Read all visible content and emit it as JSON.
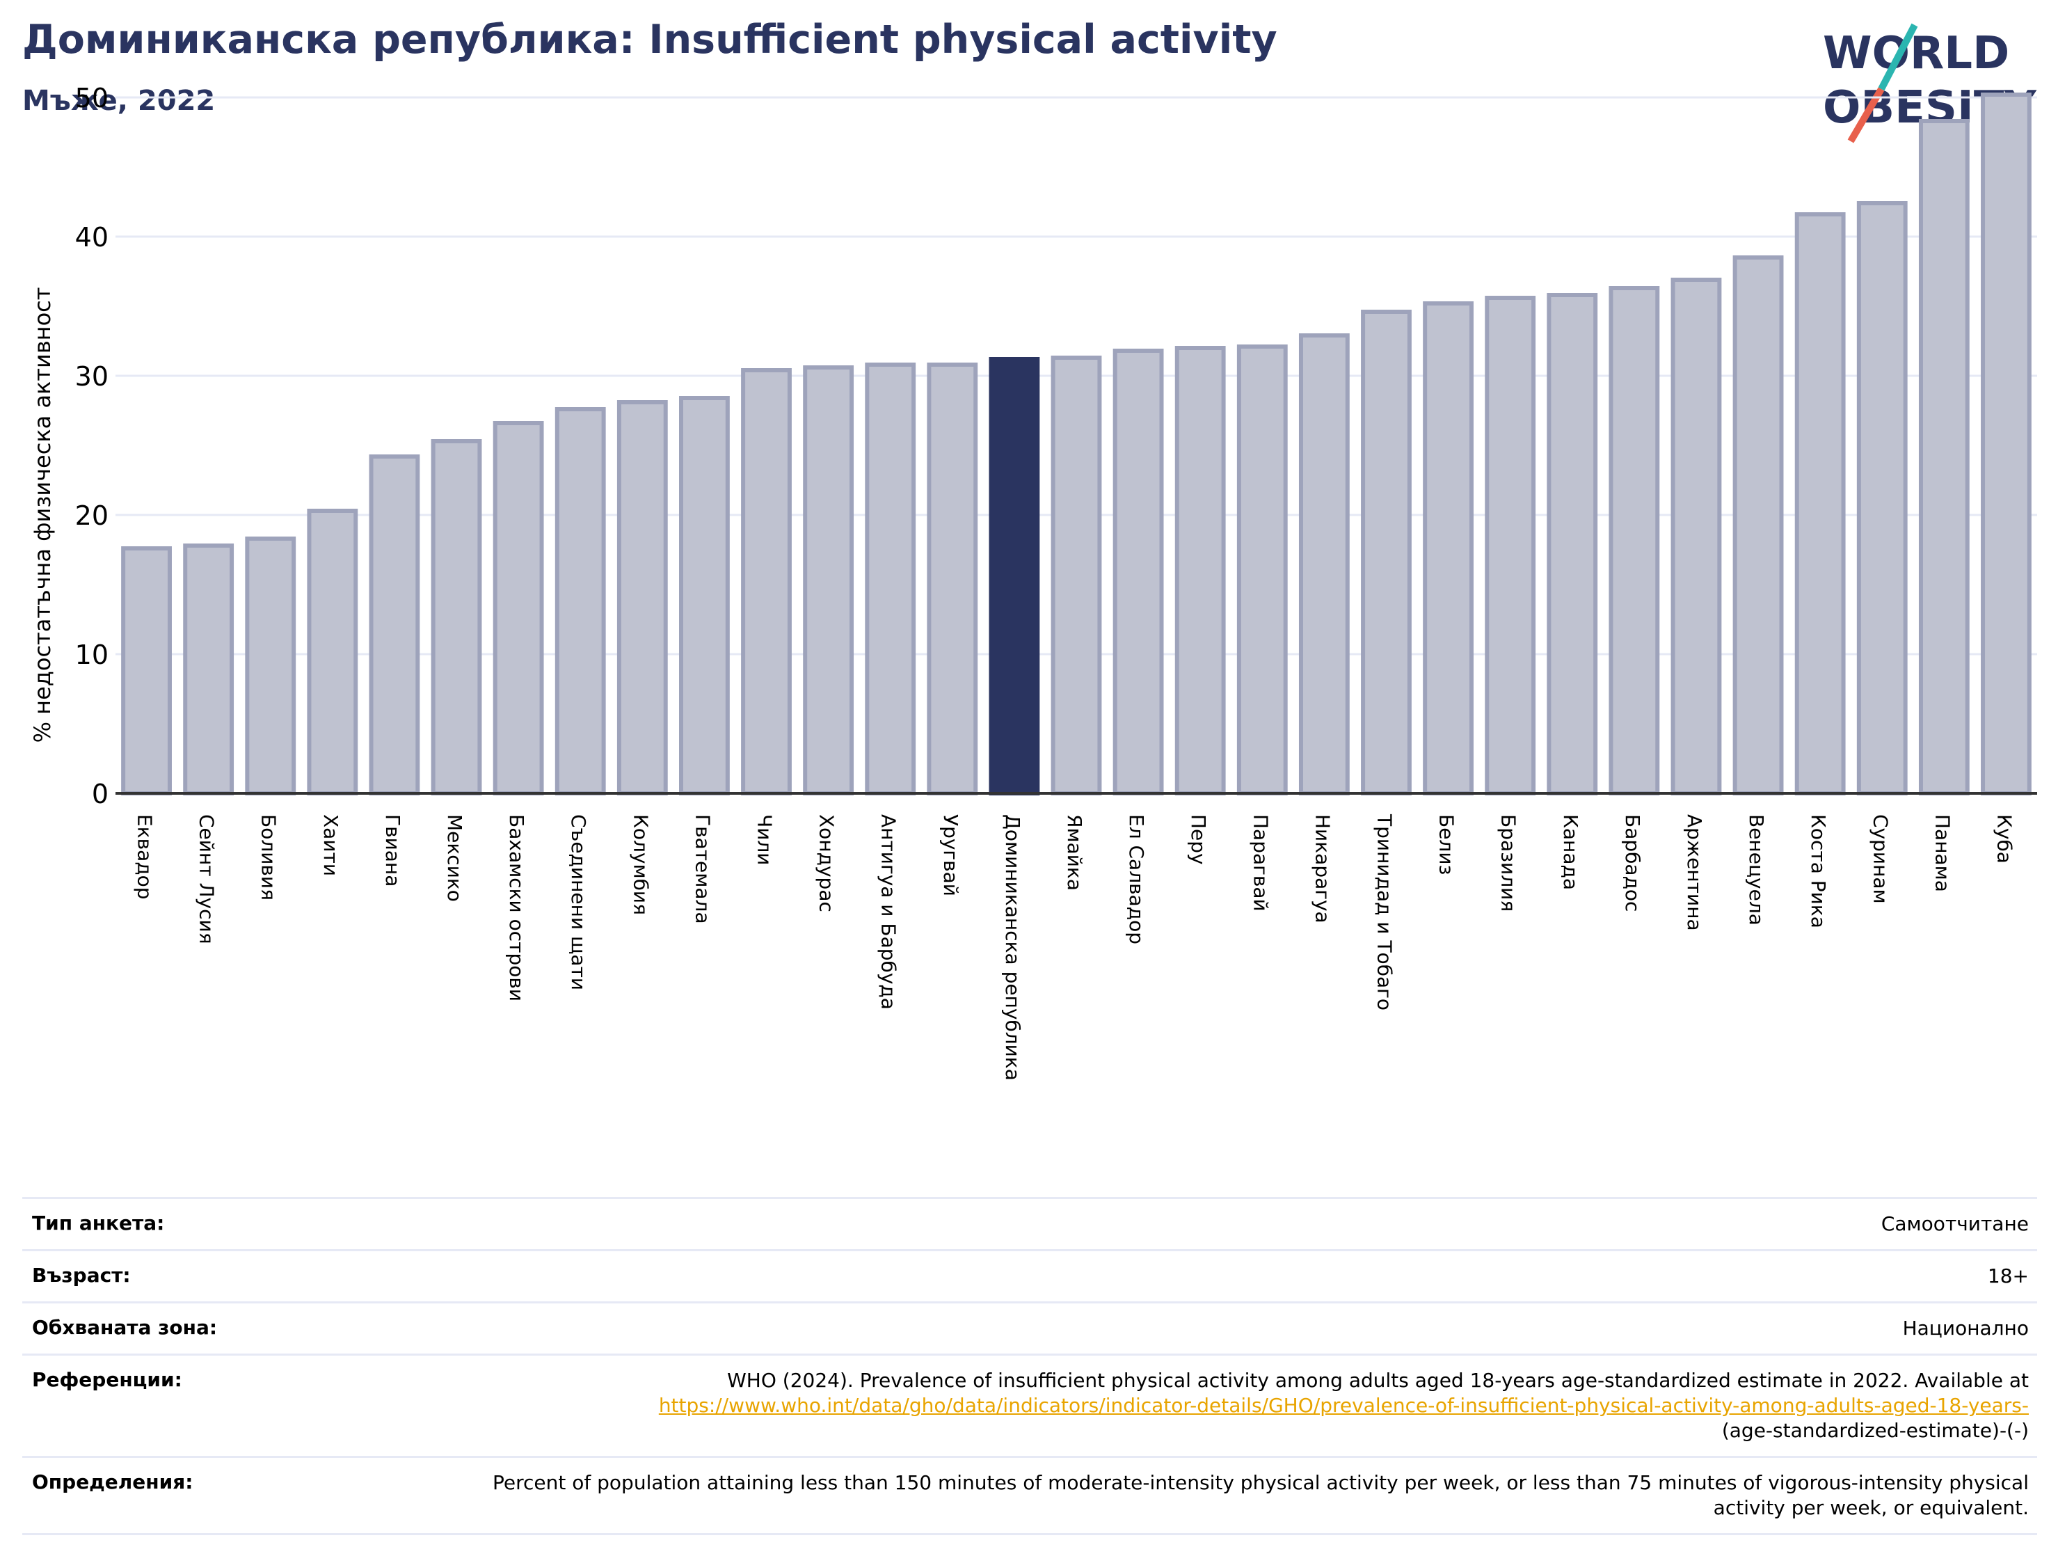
{
  "header": {
    "title": "Доминиканска република: Insufficient physical activity",
    "subtitle": "Мъже, 2022"
  },
  "logo": {
    "line1": "WORLD",
    "line2": "OBESITY",
    "text_color": "#2a3460",
    "slash_top": "#2bb5b0",
    "slash_bottom": "#e8604c"
  },
  "colors": {
    "bar_fill": "#bfc2d0",
    "bar_stroke": "#9ea3bb",
    "highlight": "#2a3460",
    "grid": "#e6e9f5",
    "axis": "#333333"
  },
  "chart_data": {
    "type": "bar",
    "title": "Доминиканска република: Insufficient physical activity",
    "subtitle": "Мъже, 2022",
    "xlabel": "",
    "ylabel": "% недостатъчна физическа активност",
    "ylim": [
      0,
      52
    ],
    "yticks": [
      0,
      10,
      20,
      30,
      40,
      50
    ],
    "grid": true,
    "highlight": "Доминиканска република",
    "categories": [
      "Еквадор",
      "Сейнт Лусия",
      "Боливия",
      "Хаити",
      "Гвиана",
      "Мексико",
      "Бахамски острови",
      "Съединени щати",
      "Колумбия",
      "Гватемала",
      "Чили",
      "Хондурас",
      "Антигуа и Барбуда",
      "Уругвай",
      "Доминиканска република",
      "Ямайка",
      "Ел Салвадор",
      "Перу",
      "Парагвай",
      "Никарагуа",
      "Тринидад и Тобаго",
      "Белиз",
      "Бразилия",
      "Канада",
      "Барбадос",
      "Аржентина",
      "Венецуела",
      "Коста Рика",
      "Суринам",
      "Панама",
      "Куба"
    ],
    "values": [
      17.6,
      17.8,
      18.3,
      20.3,
      24.2,
      25.3,
      26.6,
      27.6,
      28.1,
      28.4,
      30.4,
      30.6,
      30.8,
      30.8,
      31.2,
      31.3,
      31.8,
      32.0,
      32.1,
      32.9,
      34.6,
      35.2,
      35.6,
      35.8,
      36.3,
      36.9,
      38.5,
      41.6,
      42.4,
      48.3,
      50.2
    ]
  },
  "info": {
    "survey_type": {
      "label": "Тип анкета:",
      "value": "Самоотчитане"
    },
    "age": {
      "label": "Възраст:",
      "value": "18+"
    },
    "coverage": {
      "label": "Обхваната зона:",
      "value": "Национално"
    },
    "references": {
      "label": "Референции:",
      "text": "WHO (2024). Prevalence of insufficient physical activity among adults aged 18-years age-standardized estimate in 2022. Available at",
      "link": "https://www.who.int/data/gho/data/indicators/indicator-details/GHO/prevalence-of-insufficient-physical-activity-among-adults-aged-18-years-",
      "link_tail": "(age-standardized-estimate)-(-)"
    },
    "definitions": {
      "label": "Определения:",
      "value": "Percent of population attaining less than 150 minutes of moderate-intensity physical activity per week, or less than 75 minutes of vigorous-intensity physical activity per week, or equivalent."
    }
  }
}
